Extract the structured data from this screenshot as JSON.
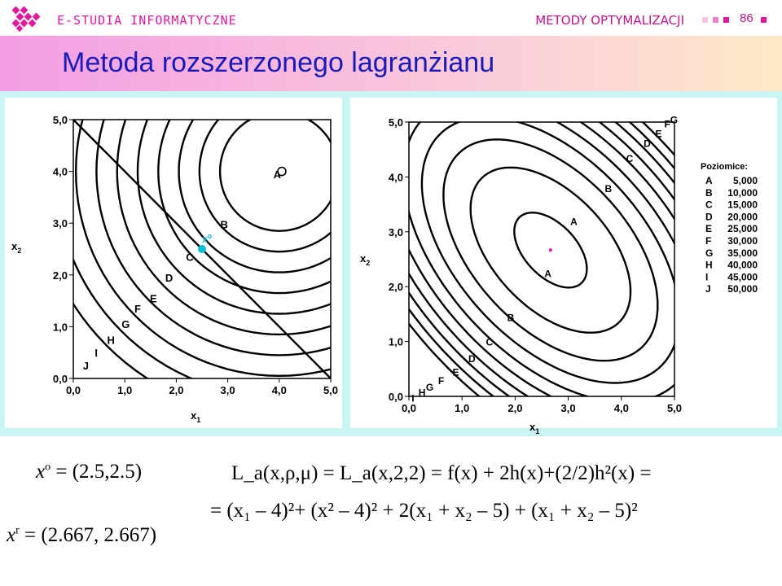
{
  "header": {
    "brand": "E-STUDIA INFORMATYCZNE",
    "course": "METODY OPTYMALIZACJI",
    "page_number": "86"
  },
  "slide": {
    "title": "Metoda rozszerzonego lagranżianu"
  },
  "left_plot": {
    "x_ticks": [
      "0,0",
      "1,0",
      "2,0",
      "3,0",
      "4,0",
      "5,0"
    ],
    "y_ticks": [
      "0,0",
      "1,0",
      "2,0",
      "3,0",
      "4,0",
      "5,0"
    ],
    "xlabel": "x₁",
    "ylabel": "x₂",
    "contour_labels": [
      "A",
      "B",
      "C",
      "D",
      "E",
      "F",
      "G",
      "H",
      "I",
      "J"
    ],
    "point_label": "x",
    "point_superscript": "o",
    "point_color": "#00bcd4"
  },
  "right_plot": {
    "x_ticks": [
      "0,0",
      "1,0",
      "2,0",
      "3,0",
      "4,0",
      "5,0"
    ],
    "y_ticks": [
      "0,0",
      "1,0",
      "2,0",
      "3,0",
      "4,0",
      "5,0"
    ],
    "xlabel": "x₁",
    "ylabel": "x₂",
    "legend_title": "Poziomice:",
    "legend": [
      {
        "label": "A",
        "value": "5,000"
      },
      {
        "label": "B",
        "value": "10,000"
      },
      {
        "label": "C",
        "value": "15,000"
      },
      {
        "label": "D",
        "value": "20,000"
      },
      {
        "label": "E",
        "value": "25,000"
      },
      {
        "label": "F",
        "value": "30,000"
      },
      {
        "label": "G",
        "value": "35,000"
      },
      {
        "label": "H",
        "value": "40,000"
      },
      {
        "label": "I",
        "value": "45,000"
      },
      {
        "label": "J",
        "value": "50,000"
      }
    ]
  },
  "formulas": {
    "x0_lhs": "x",
    "x0_sup": "o",
    "x0_rhs": " = (2.5,2.5)",
    "xr_lhs": "x",
    "xr_sup": "r",
    "xr_rhs": " = (2.667, 2.667)",
    "line1": "L_a(x,ρ,μ) = L_a(x,2,2) = f(x) + 2h(x)+(2/2)h²(x) =",
    "line2": "= (x₁ – 4)²+ (x² – 4)² + 2(x₁ + x₂ – 5) + (x₁ + x₂ – 5)²"
  },
  "colors": {
    "brand": "#e0189b",
    "title": "#1a1ab8",
    "panel_bg": "#c8f4f4"
  }
}
